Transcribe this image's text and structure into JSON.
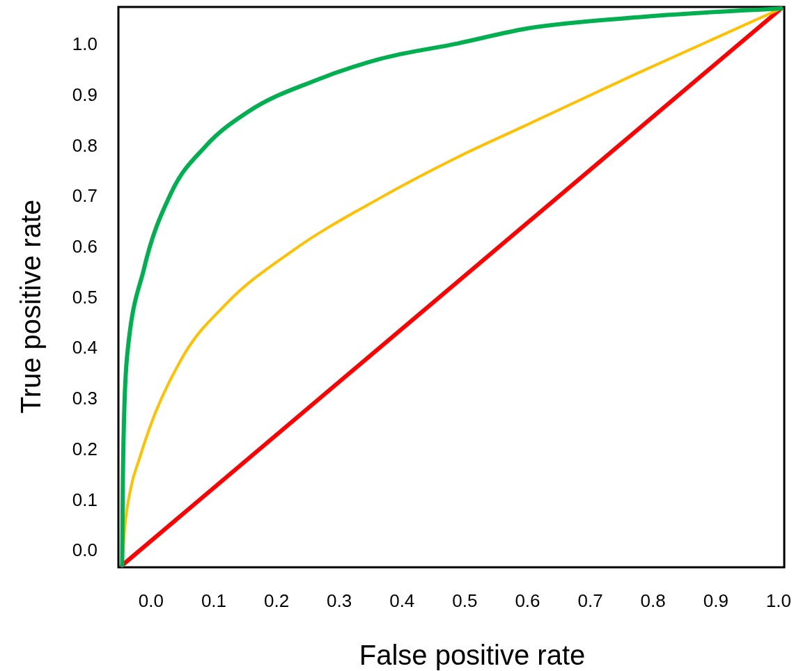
{
  "chart_data": {
    "type": "line",
    "xlabel": "False positive rate",
    "ylabel": "True positive rate",
    "xlim": [
      -0.052,
      1.009
    ],
    "ylim": [
      -0.034,
      1.073
    ],
    "xticks": [
      {
        "value": 0,
        "label": "0.0"
      },
      0.1,
      0.2,
      0.3,
      0.4,
      0.5,
      0.6,
      0.7,
      0.8,
      0.9,
      {
        "value": 1,
        "label": "1.0"
      }
    ],
    "yticks": [
      {
        "value": 0,
        "label": "0.0"
      },
      0.1,
      0.2,
      0.3,
      0.4,
      0.5,
      0.6,
      0.7,
      0.8,
      0.9,
      {
        "value": 1,
        "label": "1.0"
      }
    ],
    "marker": "none",
    "line_style": "solid",
    "series": [
      {
        "color": "#ff0000",
        "x": [
          -0.046,
          1.004
        ],
        "values": [
          -0.03,
          1.07
        ]
      },
      {
        "color": "#ffc000",
        "x": [
          -0.046,
          -0.042,
          -0.032,
          -0.019,
          -0.003,
          0.052,
          0.121,
          0.225,
          0.364,
          0.488,
          0.597,
          0.768,
          1.004
        ],
        "values": [
          -0.03,
          0.041,
          0.124,
          0.179,
          0.239,
          0.385,
          0.488,
          0.591,
          0.695,
          0.776,
          0.839,
          0.938,
          1.07
        ]
      },
      {
        "color": "#00b050",
        "x": [
          -0.046,
          -0.045,
          -0.043,
          -0.038,
          -0.011,
          0.031,
          0.087,
          0.156,
          0.26,
          0.364,
          0.489,
          0.597,
          0.768,
          1.004
        ],
        "values": [
          -0.03,
          0.124,
          0.261,
          0.385,
          0.557,
          0.703,
          0.798,
          0.867,
          0.927,
          0.97,
          1.001,
          1.03,
          1.052,
          1.07
        ]
      }
    ]
  }
}
